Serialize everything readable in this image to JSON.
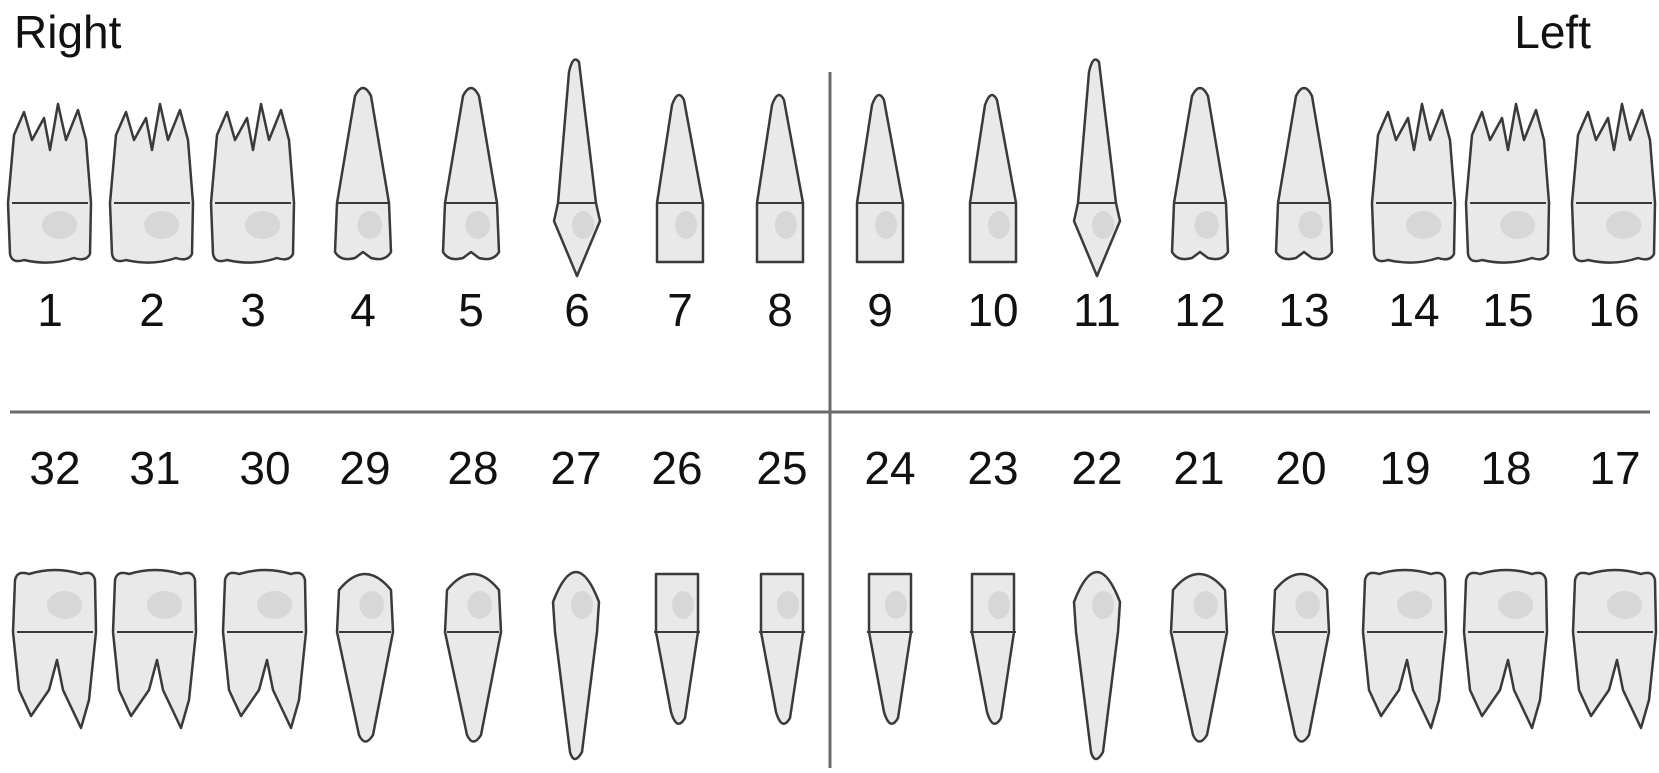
{
  "labels": {
    "right": "Right",
    "left": "Left"
  },
  "upper_arch": [
    {
      "number": "1",
      "type": "molar"
    },
    {
      "number": "2",
      "type": "molar"
    },
    {
      "number": "3",
      "type": "molar"
    },
    {
      "number": "4",
      "type": "premolar"
    },
    {
      "number": "5",
      "type": "premolar"
    },
    {
      "number": "6",
      "type": "canine"
    },
    {
      "number": "7",
      "type": "incisor"
    },
    {
      "number": "8",
      "type": "incisor"
    },
    {
      "number": "9",
      "type": "incisor"
    },
    {
      "number": "10",
      "type": "incisor"
    },
    {
      "number": "11",
      "type": "canine"
    },
    {
      "number": "12",
      "type": "premolar"
    },
    {
      "number": "13",
      "type": "premolar"
    },
    {
      "number": "14",
      "type": "molar"
    },
    {
      "number": "15",
      "type": "molar"
    },
    {
      "number": "16",
      "type": "molar"
    }
  ],
  "lower_arch": [
    {
      "number": "32",
      "type": "molar"
    },
    {
      "number": "31",
      "type": "molar"
    },
    {
      "number": "30",
      "type": "molar"
    },
    {
      "number": "29",
      "type": "premolar"
    },
    {
      "number": "28",
      "type": "premolar"
    },
    {
      "number": "27",
      "type": "canine"
    },
    {
      "number": "26",
      "type": "incisor"
    },
    {
      "number": "25",
      "type": "incisor"
    },
    {
      "number": "24",
      "type": "incisor"
    },
    {
      "number": "23",
      "type": "incisor"
    },
    {
      "number": "22",
      "type": "canine"
    },
    {
      "number": "21",
      "type": "premolar"
    },
    {
      "number": "20",
      "type": "premolar"
    },
    {
      "number": "19",
      "type": "molar"
    },
    {
      "number": "18",
      "type": "molar"
    },
    {
      "number": "17",
      "type": "molar"
    }
  ],
  "colors": {
    "tooth_fill": "#e9e9e9",
    "outline": "#3a3a3a",
    "divider": "#6b6b6b"
  }
}
